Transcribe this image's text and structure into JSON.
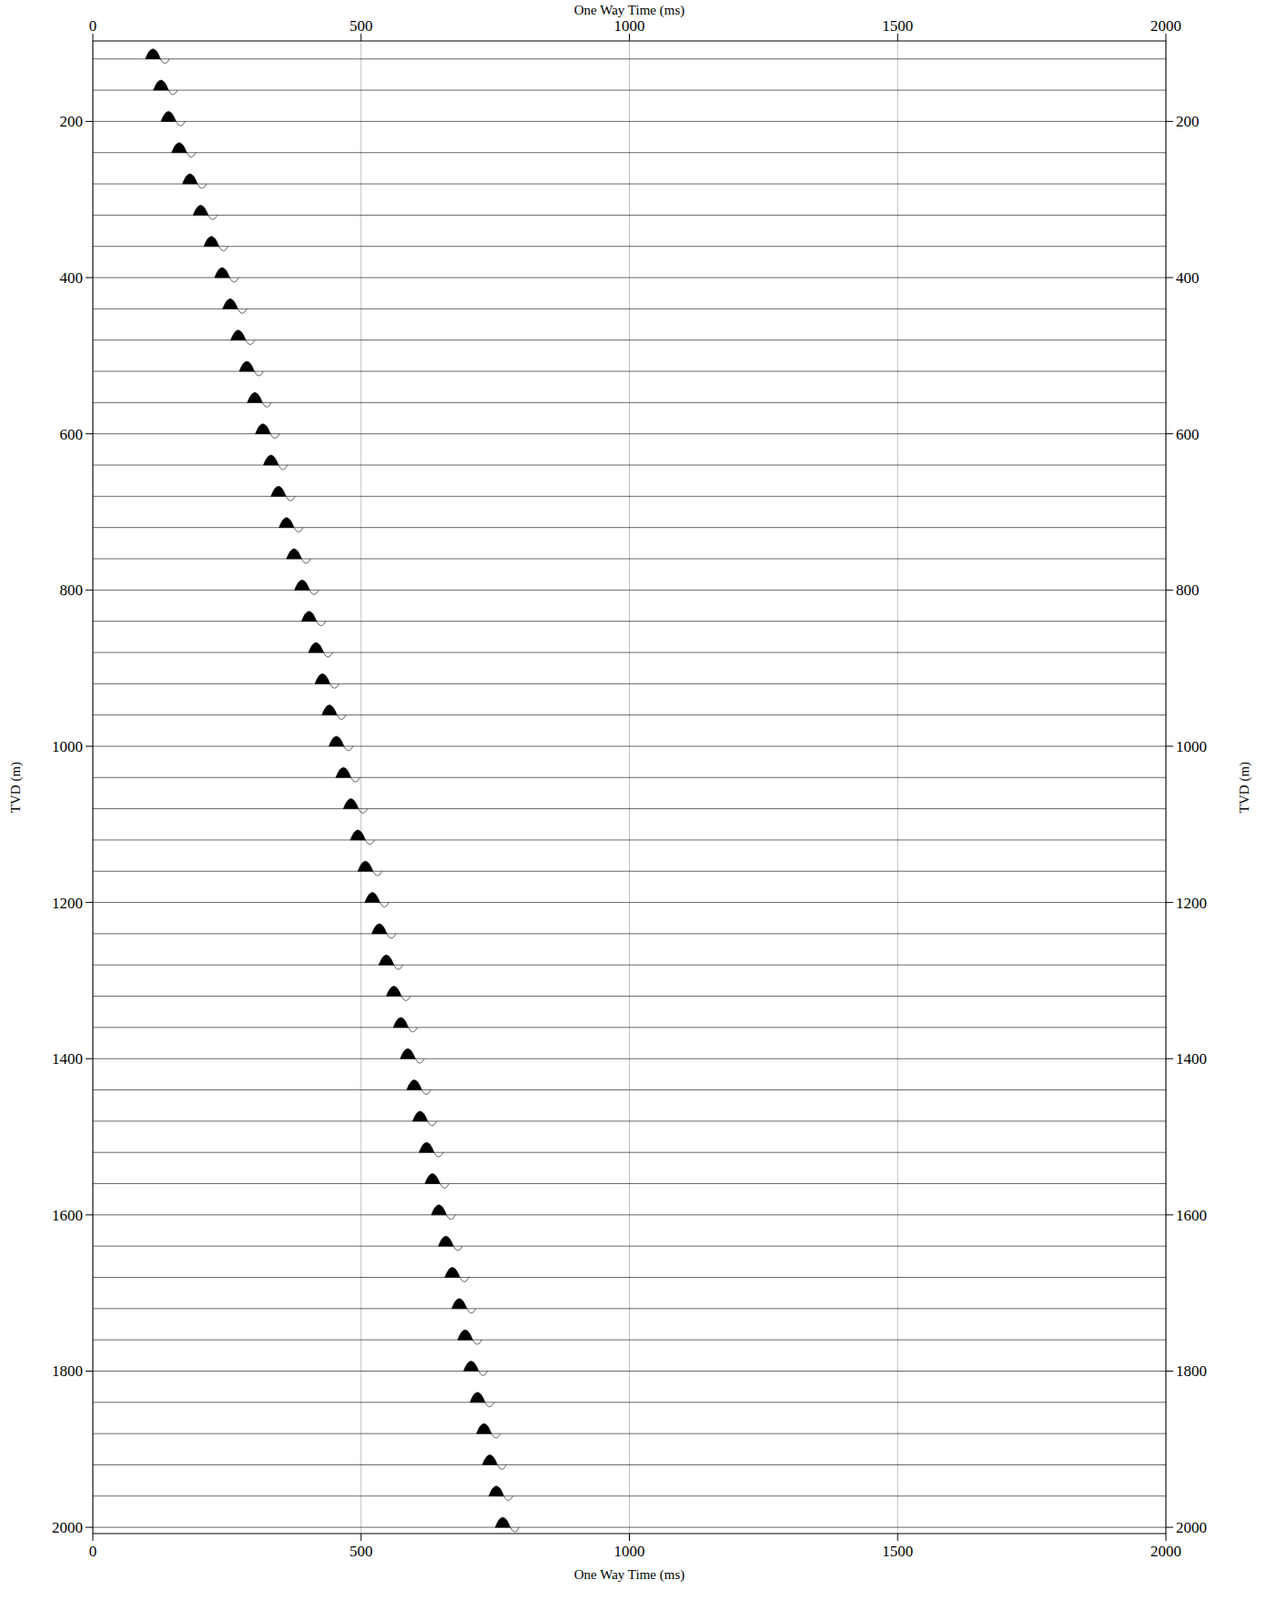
{
  "chart_data": {
    "type": "wiggle",
    "x_label": "One Way Time (ms)",
    "y_label": "TVD (m)",
    "xlim": [
      0,
      2000
    ],
    "xticks": [
      0,
      500,
      1000,
      1500,
      2000
    ],
    "ylim": [
      97,
      2008
    ],
    "yticks": [
      200,
      400,
      600,
      800,
      1000,
      1200,
      1400,
      1600,
      1800,
      2000
    ],
    "grid": true,
    "y": [
      120,
      160,
      200,
      240,
      280,
      320,
      360,
      400,
      440,
      480,
      520,
      560,
      600,
      640,
      680,
      720,
      760,
      800,
      840,
      880,
      920,
      960,
      1000,
      1040,
      1080,
      1120,
      1160,
      1200,
      1240,
      1280,
      1320,
      1360,
      1400,
      1440,
      1480,
      1520,
      1560,
      1600,
      1640,
      1680,
      1720,
      1760,
      1800,
      1840,
      1880,
      1920,
      1960,
      2000
    ],
    "series": [
      {
        "color": "#000000",
        "values": [
          112,
          127,
          141,
          161,
          181,
          201,
          221,
          241,
          256,
          271,
          287,
          302,
          317,
          332,
          346,
          361,
          375,
          390,
          403,
          416,
          428,
          441,
          454,
          467,
          481,
          494,
          508,
          521,
          534,
          547,
          561,
          574,
          587,
          599,
          610,
          622,
          633,
          645,
          658,
          670,
          683,
          694,
          705,
          717,
          729,
          740,
          752,
          764
        ]
      }
    ]
  }
}
